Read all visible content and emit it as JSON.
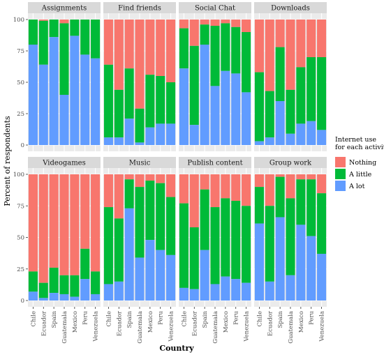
{
  "chart_data": {
    "type": "bar",
    "stacked": true,
    "xlabel": "Country",
    "ylabel": "Percent of respondents",
    "ylim": [
      0,
      100
    ],
    "yticks": [
      0,
      25,
      50,
      75,
      100
    ],
    "categories": [
      "Chile",
      "Ecuador",
      "Spain",
      "Guatemala",
      "Mexico",
      "Peru",
      "Venezuela"
    ],
    "legend": {
      "title": "Internet use\nfor each activity",
      "placement": "right",
      "entries": [
        {
          "name": "Nothing",
          "color": "#F8766D"
        },
        {
          "name": "A little",
          "color": "#00BA38"
        },
        {
          "name": "A lot",
          "color": "#619CFF"
        }
      ]
    },
    "panels": [
      {
        "title": "Assignments",
        "a_lot": [
          80,
          64,
          86,
          40,
          87,
          72,
          69
        ],
        "a_little": [
          20,
          35,
          14,
          57,
          13,
          28,
          31
        ]
      },
      {
        "title": "Find friends",
        "a_lot": [
          6,
          6,
          21,
          2,
          14,
          17,
          17
        ],
        "a_little": [
          58,
          38,
          40,
          27,
          42,
          38,
          33
        ]
      },
      {
        "title": "Social Chat",
        "a_lot": [
          61,
          16,
          80,
          47,
          59,
          57,
          42
        ],
        "a_little": [
          32,
          63,
          16,
          48,
          38,
          37,
          48
        ]
      },
      {
        "title": "Downloads",
        "a_lot": [
          3,
          6,
          35,
          9,
          17,
          19,
          12
        ],
        "a_little": [
          55,
          37,
          43,
          35,
          45,
          51,
          58
        ]
      },
      {
        "title": "Videogames",
        "a_lot": [
          7,
          2,
          6,
          5,
          3,
          17,
          5
        ],
        "a_little": [
          16,
          12,
          20,
          15,
          17,
          24,
          18
        ]
      },
      {
        "title": "Music",
        "a_lot": [
          13,
          15,
          73,
          34,
          48,
          40,
          36
        ],
        "a_little": [
          61,
          50,
          23,
          56,
          47,
          53,
          46
        ]
      },
      {
        "title": "Publish content",
        "a_lot": [
          10,
          9,
          40,
          13,
          19,
          17,
          14
        ],
        "a_little": [
          67,
          49,
          48,
          61,
          62,
          62,
          61
        ]
      },
      {
        "title": "Group work",
        "a_lot": [
          61,
          15,
          66,
          20,
          60,
          51,
          37
        ],
        "a_little": [
          29,
          60,
          32,
          61,
          36,
          45,
          48
        ]
      }
    ]
  }
}
